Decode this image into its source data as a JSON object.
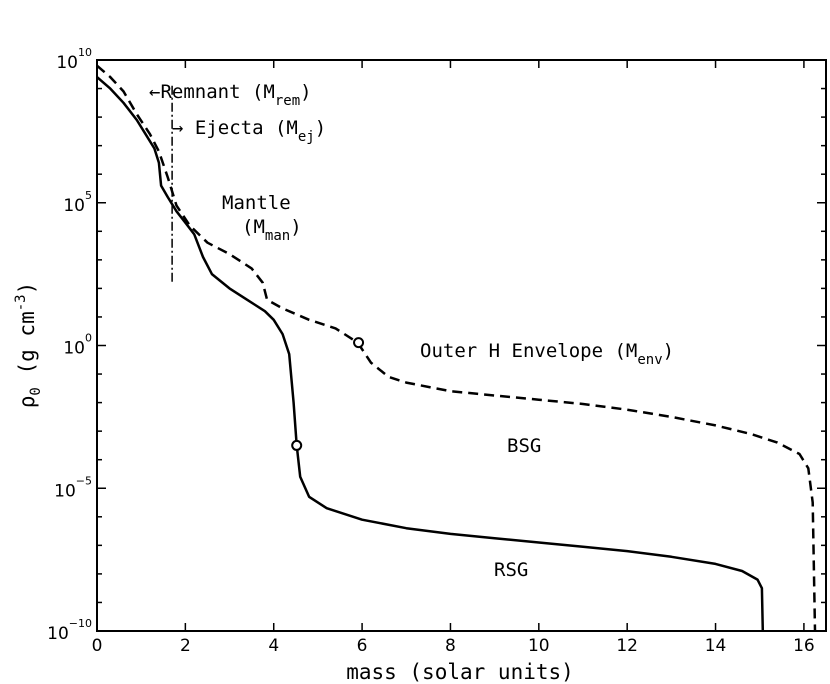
{
  "chart_data": {
    "type": "line",
    "title": "",
    "xlabel": "mass (solar units)",
    "ylabel": {
      "main": "ρ",
      "sub": "0",
      "rest": " (g cm",
      "exp": "-3",
      "close": ")"
    },
    "xlim": [
      0,
      16.5
    ],
    "ylim_log10": [
      -10,
      10
    ],
    "yscale": "log",
    "grid": false,
    "x_ticks": [
      0,
      2,
      4,
      6,
      8,
      10,
      12,
      14,
      16
    ],
    "x_tick_labels": [
      "0",
      "2",
      "4",
      "6",
      "8",
      "10",
      "12",
      "14",
      "16"
    ],
    "y_ticks": [
      {
        "log10": 10,
        "base": "10",
        "exp": "10"
      },
      {
        "log10": 5,
        "base": "10",
        "exp": "5"
      },
      {
        "log10": 0,
        "base": "10",
        "exp": "0"
      },
      {
        "log10": -5,
        "base": "10",
        "exp": "−5"
      },
      {
        "log10": -10,
        "base": "10",
        "exp": "−10"
      }
    ],
    "series": [
      {
        "style": "solid",
        "points_log10": [
          [
            0,
            9.4
          ],
          [
            0.3,
            9.0
          ],
          [
            0.6,
            8.5
          ],
          [
            0.9,
            7.9
          ],
          [
            1.1,
            7.4
          ],
          [
            1.3,
            6.9
          ],
          [
            1.4,
            6.4
          ],
          [
            1.45,
            5.6
          ],
          [
            1.6,
            5.2
          ],
          [
            1.8,
            4.7
          ],
          [
            2.0,
            4.3
          ],
          [
            2.2,
            3.9
          ],
          [
            2.4,
            3.1
          ],
          [
            2.6,
            2.5
          ],
          [
            3.0,
            2.0
          ],
          [
            3.4,
            1.6
          ],
          [
            3.8,
            1.2
          ],
          [
            4.0,
            0.9
          ],
          [
            4.2,
            0.4
          ],
          [
            4.35,
            -0.3
          ],
          [
            4.45,
            -2.0
          ],
          [
            4.52,
            -3.5
          ],
          [
            4.6,
            -4.6
          ],
          [
            4.8,
            -5.3
          ],
          [
            5.2,
            -5.7
          ],
          [
            6.0,
            -6.1
          ],
          [
            7.0,
            -6.4
          ],
          [
            8.0,
            -6.6
          ],
          [
            9.0,
            -6.75
          ],
          [
            10.0,
            -6.9
          ],
          [
            11.0,
            -7.05
          ],
          [
            12.0,
            -7.2
          ],
          [
            13.0,
            -7.4
          ],
          [
            14.0,
            -7.65
          ],
          [
            14.6,
            -7.9
          ],
          [
            14.95,
            -8.2
          ],
          [
            15.05,
            -8.5
          ],
          [
            15.07,
            -10
          ]
        ]
      },
      {
        "style": "dashed",
        "points_log10": [
          [
            0,
            9.8
          ],
          [
            0.3,
            9.4
          ],
          [
            0.6,
            8.9
          ],
          [
            0.9,
            8.1
          ],
          [
            1.2,
            7.4
          ],
          [
            1.4,
            6.8
          ],
          [
            1.6,
            5.9
          ],
          [
            1.8,
            4.9
          ],
          [
            2.1,
            4.2
          ],
          [
            2.5,
            3.6
          ],
          [
            3.0,
            3.2
          ],
          [
            3.5,
            2.7
          ],
          [
            3.75,
            2.2
          ],
          [
            3.85,
            1.6
          ],
          [
            4.2,
            1.3
          ],
          [
            4.8,
            0.9
          ],
          [
            5.4,
            0.6
          ],
          [
            5.9,
            0.1
          ],
          [
            6.2,
            -0.6
          ],
          [
            6.6,
            -1.1
          ],
          [
            7.0,
            -1.3
          ],
          [
            8.0,
            -1.6
          ],
          [
            9.0,
            -1.75
          ],
          [
            10.0,
            -1.9
          ],
          [
            11.0,
            -2.05
          ],
          [
            12.0,
            -2.25
          ],
          [
            13.0,
            -2.5
          ],
          [
            14.0,
            -2.8
          ],
          [
            14.8,
            -3.1
          ],
          [
            15.4,
            -3.4
          ],
          [
            15.9,
            -3.8
          ],
          [
            16.1,
            -4.3
          ],
          [
            16.2,
            -5.5
          ],
          [
            16.25,
            -10
          ]
        ]
      }
    ],
    "markers": [
      {
        "x": 5.92,
        "log10": 0.1
      },
      {
        "x": 4.52,
        "log10": -3.5
      }
    ],
    "divider": {
      "x": 1.7,
      "top_log10": 9.1,
      "bottom_log10": 2.2
    },
    "annotations": {
      "remnant": {
        "arrow": "←",
        "text": "Remnant (M",
        "sub": "rem",
        "close": ")"
      },
      "ejecta": {
        "arrow": "→",
        "text": " Ejecta (M",
        "sub": "ej",
        "close": ")"
      },
      "mantle_1": "Mantle",
      "mantle_2": {
        "text": "(M",
        "sub": "man",
        "close": ")"
      },
      "envelope": {
        "text": "Outer H Envelope (M",
        "sub": "env",
        "close": ")"
      },
      "bsg": "BSG",
      "rsg": "RSG"
    }
  }
}
